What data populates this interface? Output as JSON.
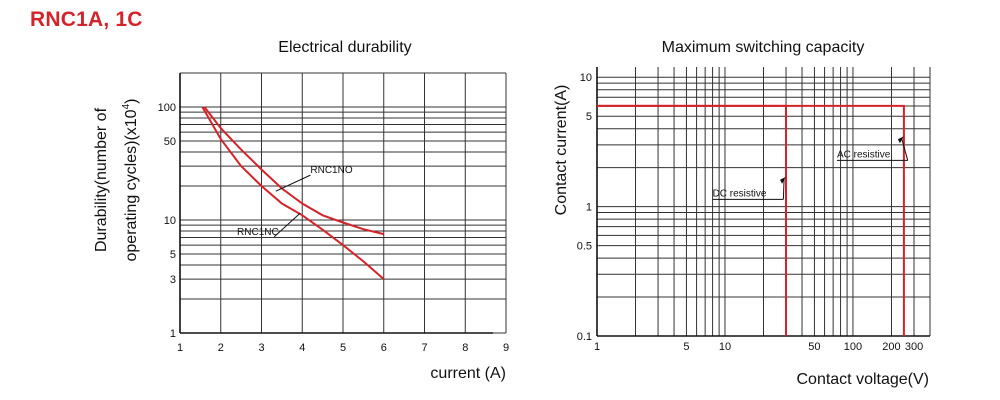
{
  "heading": "RNC1A, 1C",
  "colors": {
    "accent": "#d2242a",
    "curve": "#d2242a",
    "grid": "#333333"
  },
  "chart_data": [
    {
      "type": "line",
      "title": "Electrical durability",
      "xlabel": "current (A)",
      "ylabel_lines": [
        "Durability(number of",
        "operating cycles)(x10"
      ],
      "ylabel_sup": "4",
      "ylabel_close": ")",
      "xscale": "linear",
      "yscale": "log",
      "xlim": [
        1,
        9
      ],
      "ylim": [
        1,
        200
      ],
      "grid": true,
      "xticks": [
        1,
        2,
        3,
        4,
        5,
        6,
        7,
        8,
        9
      ],
      "xtick_labels": [
        "1",
        "2",
        "3",
        "4",
        "5",
        "6",
        "7",
        "8",
        "9"
      ],
      "yticks": [
        1,
        3,
        5,
        10,
        50,
        100
      ],
      "ytick_labels": [
        "1",
        "3",
        "5",
        "10",
        "50",
        "100"
      ],
      "series": [
        {
          "name": "RNC1NO",
          "x": [
            1.6,
            2,
            2.5,
            3,
            3.5,
            4,
            4.5,
            5,
            5.5,
            6
          ],
          "y": [
            100,
            65,
            42,
            28,
            19,
            14,
            11,
            9.5,
            8.3,
            7.5
          ]
        },
        {
          "name": "RNC1NC",
          "x": [
            1.55,
            2,
            2.5,
            3,
            3.5,
            4,
            4.5,
            5,
            5.5,
            6
          ],
          "y": [
            100,
            52,
            30,
            20,
            14,
            11,
            8.2,
            6,
            4.3,
            3
          ]
        }
      ],
      "annotations": [
        {
          "text": "RNC1NO",
          "x": 4.2,
          "y": 26,
          "target_x": 3.35,
          "target_y": 18
        },
        {
          "text": "RNC1NC",
          "x": 2.4,
          "y": 7.4,
          "target_x": 3.95,
          "target_y": 11.5
        }
      ]
    },
    {
      "type": "line",
      "title": "Maximum switching capacity",
      "xlabel": "Contact voltage(V)",
      "ylabel": "Contact current(A)",
      "xscale": "log",
      "yscale": "log",
      "xlim": [
        1,
        400
      ],
      "ylim": [
        0.1,
        12
      ],
      "grid": true,
      "xticks": [
        1,
        5,
        10,
        50,
        100,
        200,
        300
      ],
      "xtick_labels": [
        "1",
        "5",
        "10",
        "50",
        "100",
        "200",
        "300"
      ],
      "yticks": [
        0.1,
        0.5,
        1,
        5,
        10
      ],
      "ytick_labels": [
        "0.1",
        "0.5",
        "1",
        "5",
        "10"
      ],
      "series": [
        {
          "name": "DC resistive",
          "x": [
            1,
            30,
            30
          ],
          "y": [
            6,
            6,
            0.1
          ]
        },
        {
          "name": "AC resistive",
          "x": [
            1,
            250,
            250
          ],
          "y": [
            6,
            6,
            0.1
          ]
        }
      ],
      "annotations": [
        {
          "text": "DC resistive",
          "x": 8,
          "y": 1.2,
          "target_x": 30,
          "target_y": 1.7
        },
        {
          "text": "AC resistive",
          "x": 75,
          "y": 2.4,
          "target_x": 250,
          "target_y": 3.5
        }
      ]
    }
  ]
}
